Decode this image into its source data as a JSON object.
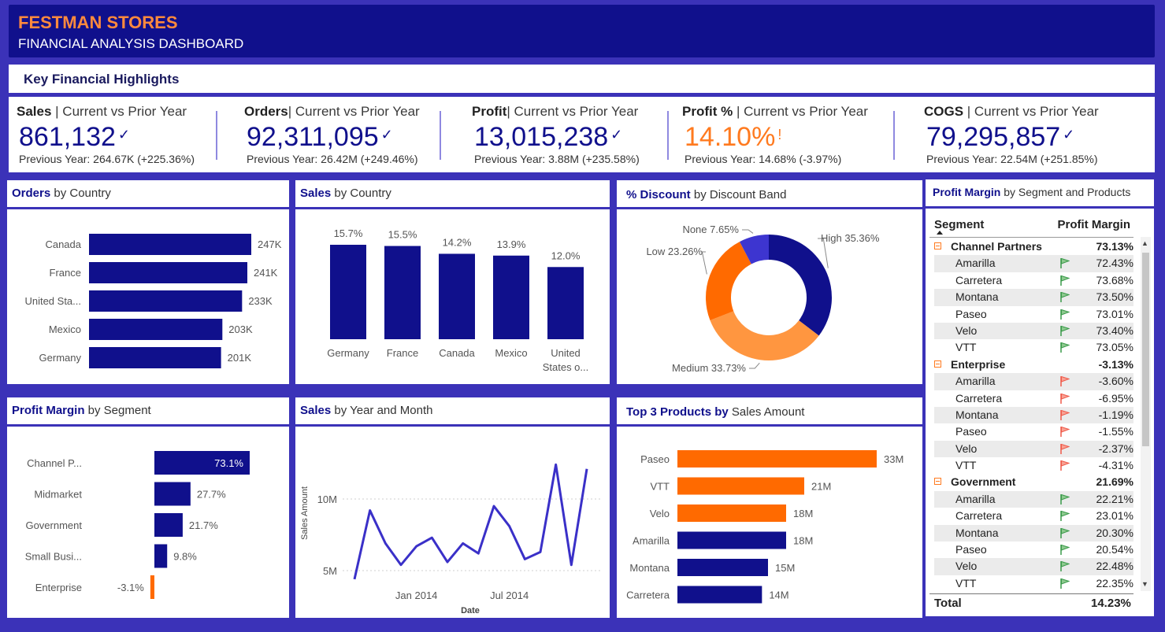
{
  "header": {
    "brand": "FESTMAN STORES",
    "subtitle": "FINANCIAL ANALYSIS DASHBOARD"
  },
  "highlights_title": "Key Financial Highlights",
  "kpis": [
    {
      "bold": "Sales",
      "rest": " | Current vs Prior Year",
      "value": "861,132",
      "mark": "✓",
      "prev": "Previous Year: 264.67K (+225.36%)"
    },
    {
      "bold": "Orders",
      "rest": "| Current vs Prior Year",
      "value": "92,311,095",
      "mark": "✓",
      "prev": "Previous Year: 26.42M (+249.46%)"
    },
    {
      "bold": "Profit",
      "rest": "| Current vs Prior Year",
      "value": "13,015,238",
      "mark": "✓",
      "prev": "Previous Year: 3.88M (+235.58%)"
    },
    {
      "bold": "Profit %",
      "rest": " | Current vs Prior Year",
      "value": "14.10%",
      "mark": "!",
      "prev": "Previous Year: 14.68% (-3.97%)"
    },
    {
      "bold": "COGS",
      "rest": " | Current vs Prior Year",
      "value": "79,295,857",
      "mark": "✓",
      "prev": "Previous Year: 22.54M (+251.85%)"
    }
  ],
  "panels": {
    "orders_country": {
      "bold": "Orders",
      "rest": " by Country"
    },
    "sales_country": {
      "bold": "Sales",
      "rest": " by Country"
    },
    "discount": {
      "bold": "% Discount",
      "rest": " by Discount Band"
    },
    "pm_products": {
      "bold": "Profit Margin",
      "rest": " by Segment and Products"
    },
    "pm_segment": {
      "bold": "Profit Margin",
      "rest": " by Segment"
    },
    "sales_month": {
      "bold": "Sales",
      "rest": " by Year and Month"
    },
    "top3": {
      "bold": "Top 3 Products by",
      "rest": " Sales Amount"
    }
  },
  "colors": {
    "navy": "#10108c",
    "orange": "#ff6a00",
    "light_orange": "#ff9640",
    "background": "#3b32b8"
  },
  "chart_data": [
    {
      "id": "orders_by_country",
      "type": "bar",
      "orientation": "horizontal",
      "categories": [
        "Canada",
        "France",
        "United Sta...",
        "Mexico",
        "Germany"
      ],
      "values": [
        247,
        241,
        233,
        203,
        201
      ],
      "labels": [
        "247K",
        "241K",
        "233K",
        "203K",
        "201K"
      ]
    },
    {
      "id": "sales_by_country",
      "type": "bar",
      "categories": [
        "Germany",
        "France",
        "Canada",
        "Mexico",
        "United States o..."
      ],
      "values": [
        15.7,
        15.5,
        14.2,
        13.9,
        12.0
      ],
      "labels": [
        "15.7%",
        "15.5%",
        "14.2%",
        "13.9%",
        "12.0%"
      ]
    },
    {
      "id": "discount_by_band",
      "type": "pie",
      "slices": [
        {
          "label": "High",
          "value": 35.36,
          "text": "High 35.36%",
          "color": "#10108c"
        },
        {
          "label": "Medium",
          "value": 33.73,
          "text": "Medium 33.73%",
          "color": "#ff9640"
        },
        {
          "label": "Low",
          "value": 23.26,
          "text": "Low 23.26%",
          "color": "#ff6a00"
        },
        {
          "label": "None",
          "value": 7.65,
          "text": "None 7.65%",
          "color": "#3d35d0"
        }
      ]
    },
    {
      "id": "profit_margin_by_segment",
      "type": "bar",
      "orientation": "horizontal",
      "categories": [
        "Channel P...",
        "Midmarket",
        "Government",
        "Small Busi...",
        "Enterprise"
      ],
      "values": [
        73.1,
        27.7,
        21.7,
        9.8,
        -3.1
      ],
      "labels": [
        "73.1%",
        "27.7%",
        "21.7%",
        "9.8%",
        "-3.1%"
      ]
    },
    {
      "id": "sales_by_year_month",
      "type": "line",
      "xlabel": "Date",
      "ylabel": "Sales Amount",
      "x_ticks": [
        "Jan 2014",
        "Jul 2014"
      ],
      "y_ticks": [
        "5M",
        "10M"
      ],
      "x": [
        "2013-09",
        "2013-10",
        "2013-11",
        "2013-12",
        "2014-01",
        "2014-02",
        "2014-03",
        "2014-04",
        "2014-05",
        "2014-06",
        "2014-07",
        "2014-08",
        "2014-09",
        "2014-10",
        "2014-11",
        "2014-12"
      ],
      "values": [
        4.4,
        9.2,
        6.9,
        5.4,
        6.7,
        7.3,
        5.6,
        6.9,
        6.2,
        9.5,
        8.1,
        5.8,
        6.3,
        12.4,
        5.4,
        12.1
      ]
    },
    {
      "id": "top3_products_by_sales",
      "type": "bar",
      "orientation": "horizontal",
      "categories": [
        "Paseo",
        "VTT",
        "Velo",
        "Amarilla",
        "Montana",
        "Carretera"
      ],
      "values": [
        33,
        21,
        18,
        18,
        15,
        14
      ],
      "labels": [
        "33M",
        "21M",
        "18M",
        "18M",
        "15M",
        "14M"
      ],
      "highlighted": [
        true,
        true,
        true,
        false,
        false,
        false
      ]
    },
    {
      "id": "profit_margin_by_segment_and_products",
      "type": "table",
      "columns": [
        "Segment",
        "Profit Margin"
      ],
      "groups": [
        {
          "segment": "Channel Partners",
          "value": "73.13%",
          "rows": [
            {
              "product": "Amarilla",
              "value": "72.43%",
              "flag": "green"
            },
            {
              "product": "Carretera",
              "value": "73.68%",
              "flag": "green"
            },
            {
              "product": "Montana",
              "value": "73.50%",
              "flag": "green"
            },
            {
              "product": "Paseo",
              "value": "73.01%",
              "flag": "green"
            },
            {
              "product": "Velo",
              "value": "73.40%",
              "flag": "green"
            },
            {
              "product": "VTT",
              "value": "73.05%",
              "flag": "green"
            }
          ]
        },
        {
          "segment": "Enterprise",
          "value": "-3.13%",
          "rows": [
            {
              "product": "Amarilla",
              "value": "-3.60%",
              "flag": "red"
            },
            {
              "product": "Carretera",
              "value": "-6.95%",
              "flag": "red"
            },
            {
              "product": "Montana",
              "value": "-1.19%",
              "flag": "red"
            },
            {
              "product": "Paseo",
              "value": "-1.55%",
              "flag": "red"
            },
            {
              "product": "Velo",
              "value": "-2.37%",
              "flag": "red"
            },
            {
              "product": "VTT",
              "value": "-4.31%",
              "flag": "red"
            }
          ]
        },
        {
          "segment": "Government",
          "value": "21.69%",
          "rows": [
            {
              "product": "Amarilla",
              "value": "22.21%",
              "flag": "green"
            },
            {
              "product": "Carretera",
              "value": "23.01%",
              "flag": "green"
            },
            {
              "product": "Montana",
              "value": "20.30%",
              "flag": "green"
            },
            {
              "product": "Paseo",
              "value": "20.54%",
              "flag": "green"
            },
            {
              "product": "Velo",
              "value": "22.48%",
              "flag": "green"
            },
            {
              "product": "VTT",
              "value": "22.35%",
              "flag": "green"
            }
          ]
        }
      ],
      "total": {
        "label": "Total",
        "value": "14.23%"
      }
    }
  ]
}
